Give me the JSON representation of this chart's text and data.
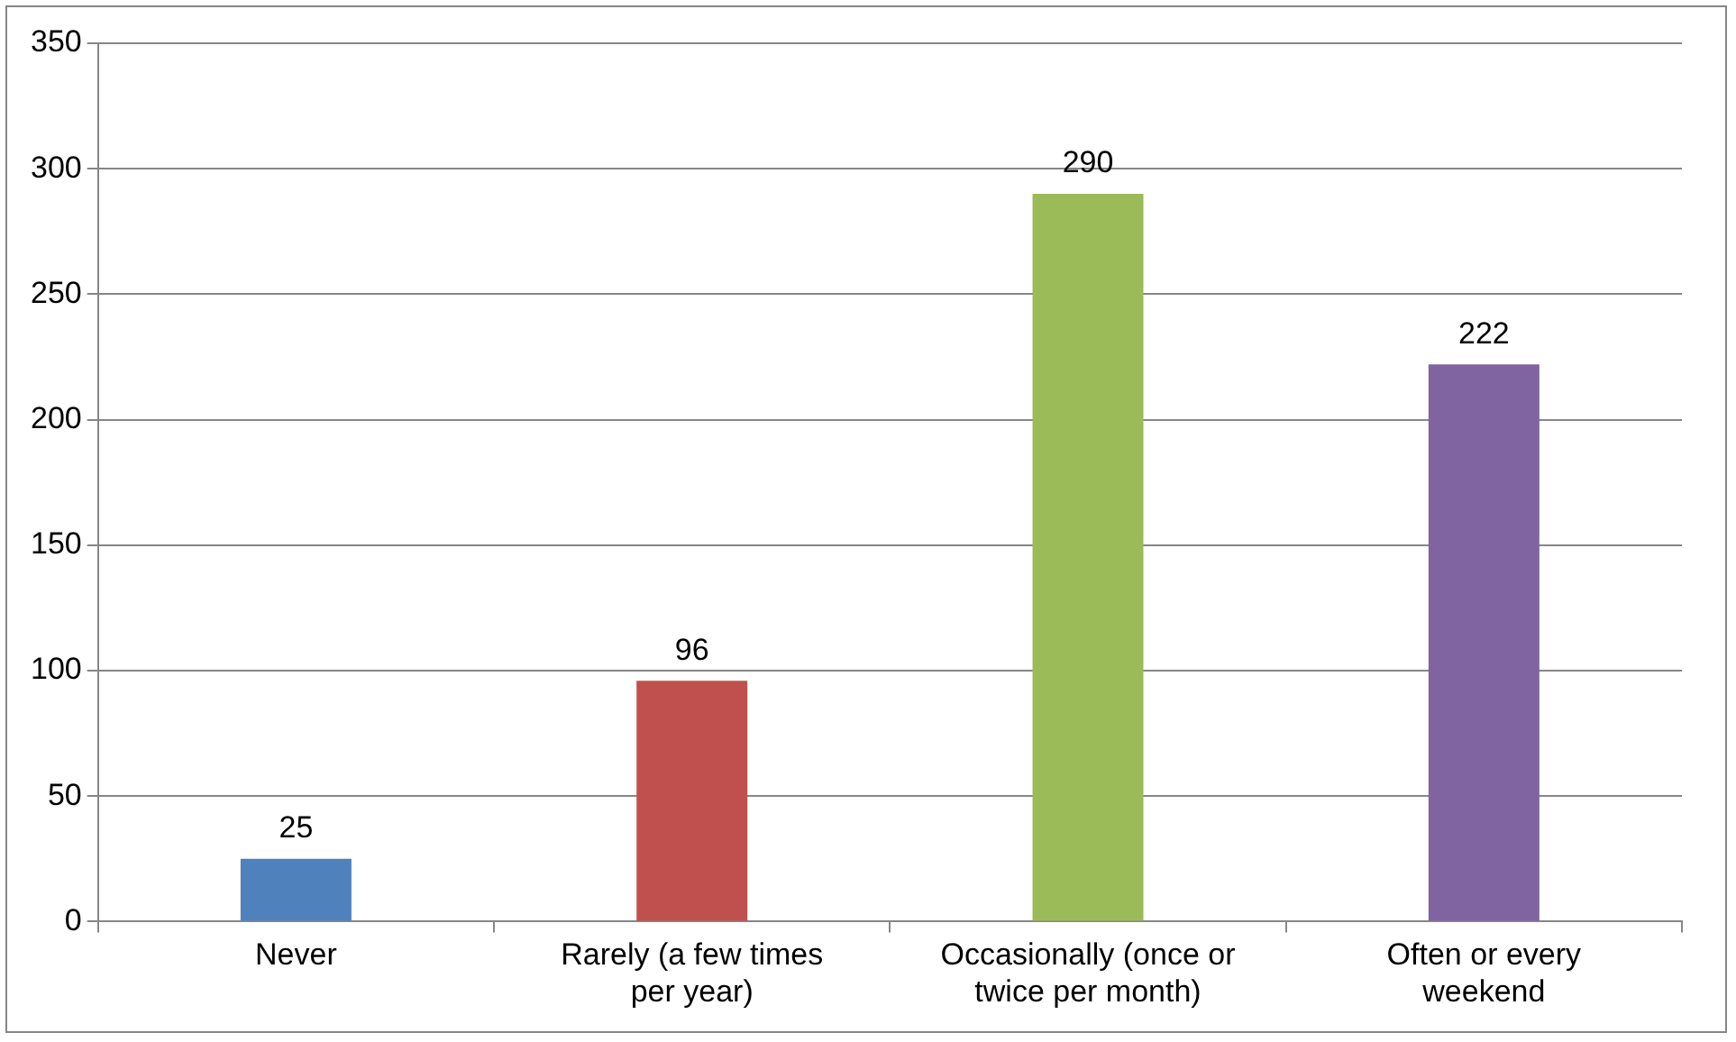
{
  "chart_data": {
    "type": "bar",
    "categories": [
      "Never",
      "Rarely (a few times per year)",
      "Occasionally (once or twice per month)",
      "Often or every weekend"
    ],
    "values": [
      25,
      96,
      290,
      222
    ],
    "colors": [
      "#4f81bd",
      "#c0504d",
      "#9bbb59",
      "#8064a2"
    ],
    "ylim": [
      0,
      350
    ],
    "yticks": [
      0,
      50,
      100,
      150,
      200,
      250,
      300,
      350
    ],
    "grid": "y",
    "data_labels": true,
    "legend": false
  }
}
